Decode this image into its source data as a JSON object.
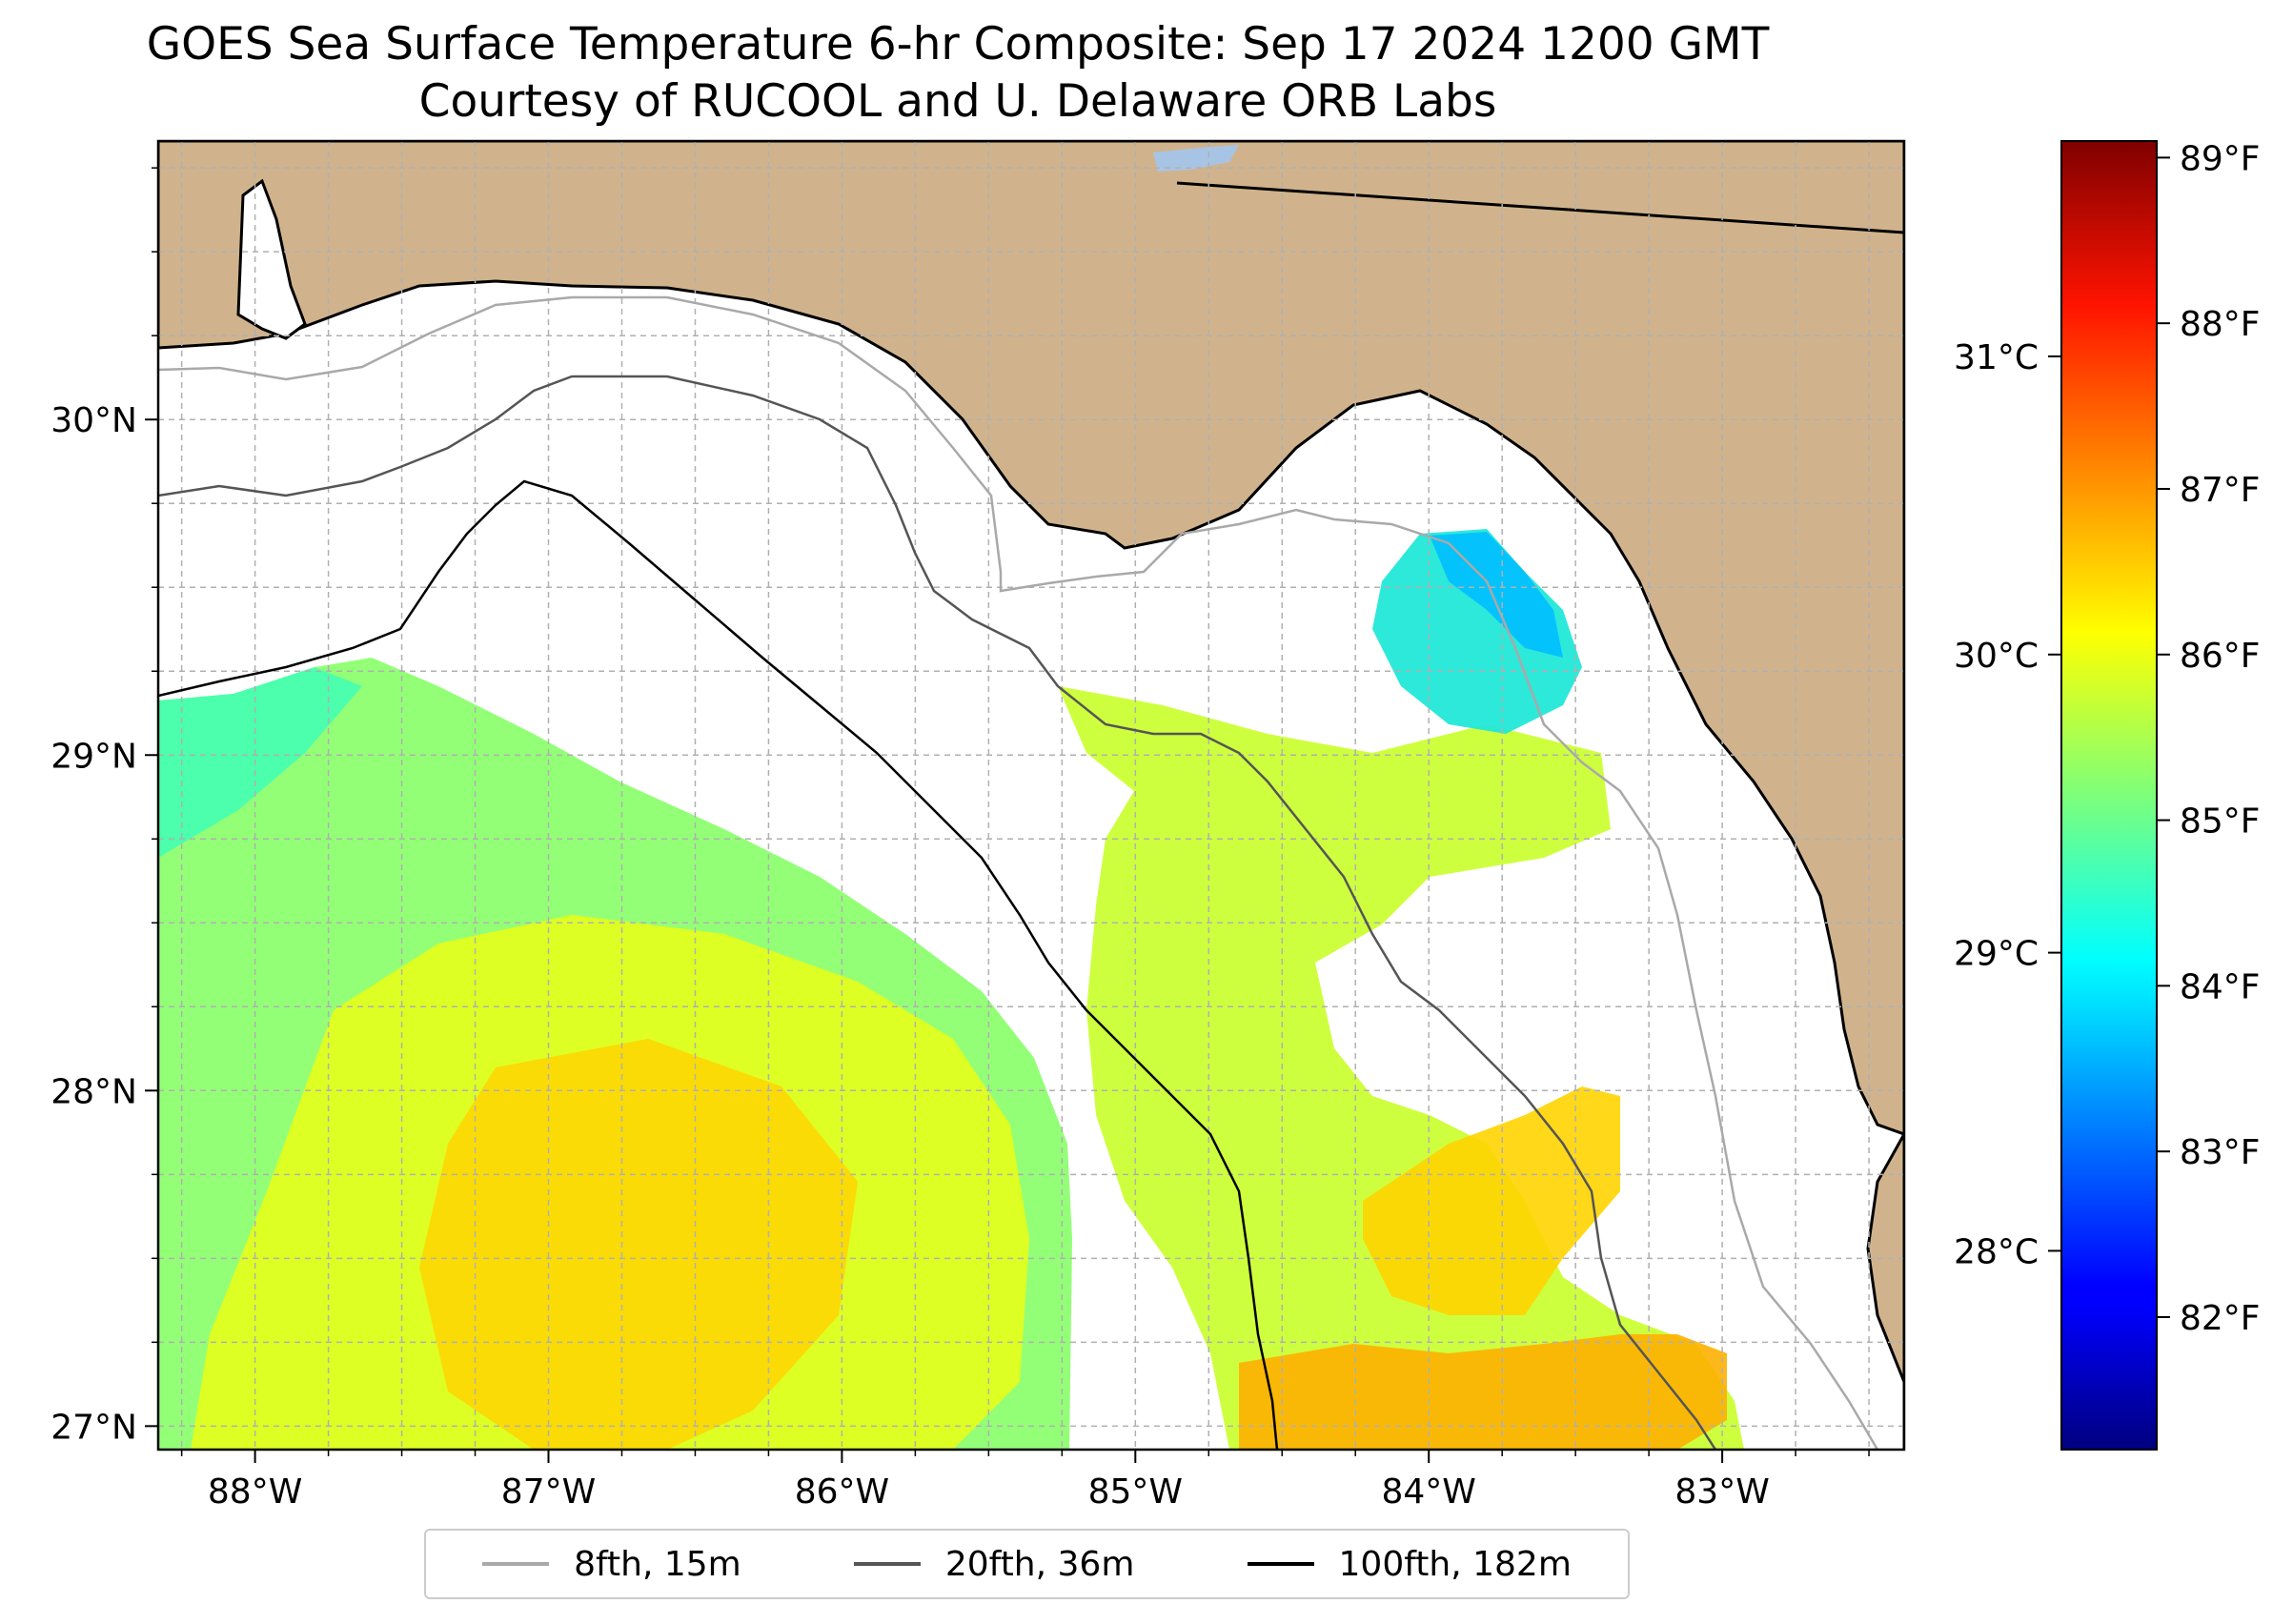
{
  "header": {
    "title": "GOES Sea Surface Temperature 6-hr Composite: Sep 17 2024 1200 GMT",
    "subtitle": "Courtesy of RUCOOL and U. Delaware ORB Labs"
  },
  "map": {
    "extent": {
      "lon_min": -88.33,
      "lon_max": -82.38,
      "lat_min": 26.93,
      "lat_max": 30.83
    },
    "lon_ticks": [
      -88,
      -87,
      -86,
      -85,
      -84,
      -83
    ],
    "lon_labels": [
      "88°W",
      "87°W",
      "86°W",
      "85°W",
      "84°W",
      "83°W"
    ],
    "lat_ticks": [
      27,
      28,
      29,
      30
    ],
    "lat_labels": [
      "27°N",
      "28°N",
      "29°N",
      "30°N"
    ],
    "gridlines": "dashed, 0.25 degree",
    "land_color": "#d0b38c",
    "ocean_color": "#ffffff"
  },
  "colorbar": {
    "colormap": "jet",
    "fahrenheit_ticks": [
      82,
      83,
      84,
      85,
      86,
      87,
      88,
      89
    ],
    "fahrenheit_labels": [
      "82°F",
      "83°F",
      "84°F",
      "85°F",
      "86°F",
      "87°F",
      "88°F",
      "89°F"
    ],
    "celsius_ticks": [
      28,
      29,
      30,
      31
    ],
    "celsius_labels": [
      "28°C",
      "29°C",
      "30°C",
      "31°C"
    ],
    "range_f": [
      81.2,
      89.1
    ]
  },
  "legend": {
    "placement": "bottom-center",
    "items": [
      {
        "label": "8fth, 15m",
        "color": "#a9a9a9"
      },
      {
        "label": "20fth, 36m",
        "color": "#555555"
      },
      {
        "label": "100fth, 182m",
        "color": "#000000"
      }
    ]
  }
}
